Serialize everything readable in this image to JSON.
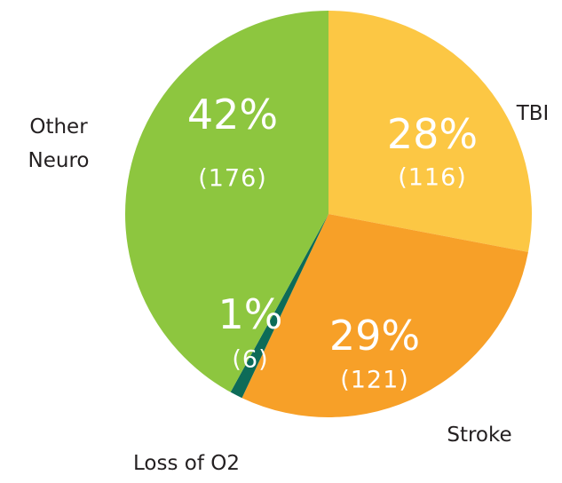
{
  "chart_data": {
    "type": "pie",
    "categories": [
      "TBI",
      "Stroke",
      "Loss of O2",
      "Other Neuro"
    ],
    "values": [
      28,
      29,
      1,
      42
    ],
    "value_labels": [
      "28%",
      "29%",
      "1%",
      "42%"
    ],
    "counts": [
      116,
      121,
      6,
      176
    ],
    "count_labels": [
      "(116)",
      "(121)",
      "(6)",
      "(176)"
    ],
    "colors": [
      "#fcc744",
      "#f7a028",
      "#0d6b58",
      "#8dc63f"
    ]
  }
}
